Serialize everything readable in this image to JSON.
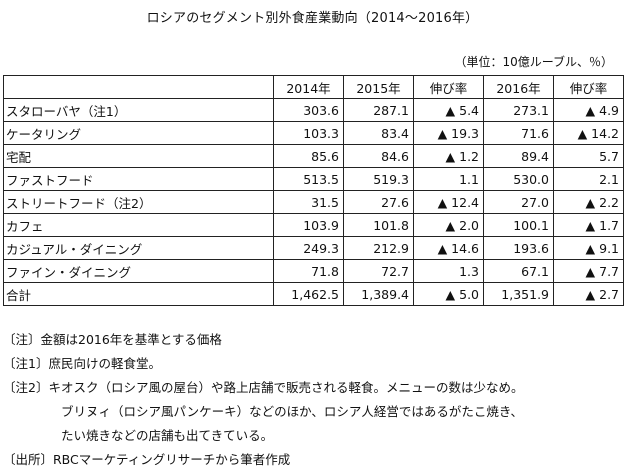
{
  "title": "ロシアのセグメント別外食産業動向（2014～2016年）",
  "unit": "（単位：10億ルーブル、％）",
  "headers": [
    "",
    "2014年",
    "2015年",
    "伸び率",
    "2016年",
    "伸び率"
  ],
  "rows": [
    {
      "cat": "スタローバヤ（注1）",
      "y2014": "303.6",
      "y2015": "287.1",
      "g15": "▲ 5.4",
      "y2016": "273.1",
      "g16": "▲ 4.9"
    },
    {
      "cat": "ケータリング",
      "y2014": "103.3",
      "y2015": "83.4",
      "g15": "▲ 19.3",
      "y2016": "71.6",
      "g16": "▲ 14.2"
    },
    {
      "cat": "宅配",
      "y2014": "85.6",
      "y2015": "84.6",
      "g15": "▲ 1.2",
      "y2016": "89.4",
      "g16": "5.7"
    },
    {
      "cat": "ファストフード",
      "y2014": "513.5",
      "y2015": "519.3",
      "g15": "1.1",
      "y2016": "530.0",
      "g16": "2.1"
    },
    {
      "cat": "ストリートフード（注2）",
      "y2014": "31.5",
      "y2015": "27.6",
      "g15": "▲ 12.4",
      "y2016": "27.0",
      "g16": "▲ 2.2"
    },
    {
      "cat": "カフェ",
      "y2014": "103.9",
      "y2015": "101.8",
      "g15": "▲ 2.0",
      "y2016": "100.1",
      "g16": "▲ 1.7"
    },
    {
      "cat": "カジュアル・ダイニング",
      "y2014": "249.3",
      "y2015": "212.9",
      "g15": "▲ 14.6",
      "y2016": "193.6",
      "g16": "▲ 9.1"
    },
    {
      "cat": "ファイン・ダイニング",
      "y2014": "71.8",
      "y2015": "72.7",
      "g15": "1.3",
      "y2016": "67.1",
      "g16": "▲ 7.7"
    },
    {
      "cat": "合計",
      "y2014": "1,462.5",
      "y2015": "1,389.4",
      "g15": "▲ 5.0",
      "y2016": "1,351.9",
      "g16": "▲ 2.7"
    }
  ],
  "notes": {
    "note0": "〔注〕金額は2016年を基準とする価格",
    "note1": "〔注1〕庶民向けの軽食堂。",
    "note2_a": "〔注2〕キオスク（ロシア風の屋台）や路上店舗で販売される軽食。メニューの数は少なめ。",
    "note2_b": "ブリヌィ（ロシア風パンケーキ）などのほか、ロシア人経営ではあるがたこ焼き、",
    "note2_c": "たい焼きなどの店舗も出てきている。",
    "source": "〔出所〕RBCマーケティングリサーチから筆者作成"
  }
}
